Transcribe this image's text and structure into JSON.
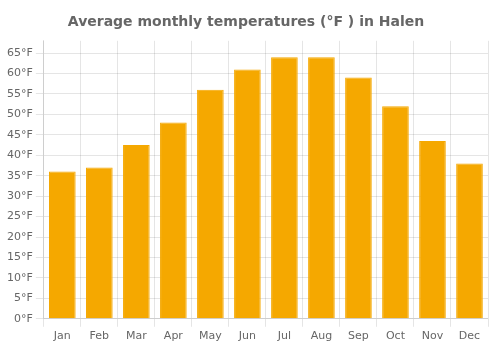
{
  "chart_data": {
    "type": "bar",
    "title": "Average monthly temperatures (°F ) in Halen",
    "categories": [
      "Jan",
      "Feb",
      "Mar",
      "Apr",
      "May",
      "Jun",
      "Jul",
      "Aug",
      "Sep",
      "Oct",
      "Nov",
      "Dec"
    ],
    "values": [
      36,
      37,
      42.5,
      48,
      56,
      61,
      64,
      64,
      59,
      52,
      43.5,
      38
    ],
    "color": "#F5A800",
    "ylim": [
      0,
      68
    ],
    "yticks": [
      {
        "value": 0,
        "label": "0°F"
      },
      {
        "value": 5,
        "label": "5°F"
      },
      {
        "value": 10,
        "label": "10°F"
      },
      {
        "value": 15,
        "label": "15°F"
      },
      {
        "value": 20,
        "label": "20°F"
      },
      {
        "value": 25,
        "label": "25°F"
      },
      {
        "value": 30,
        "label": "30°F"
      },
      {
        "value": 35,
        "label": "35°F"
      },
      {
        "value": 40,
        "label": "40°F"
      },
      {
        "value": 45,
        "label": "45°F"
      },
      {
        "value": 50,
        "label": "50°F"
      },
      {
        "value": 55,
        "label": "55°F"
      },
      {
        "value": 60,
        "label": "60°F"
      },
      {
        "value": 65,
        "label": "65°F"
      }
    ],
    "grid": true
  }
}
